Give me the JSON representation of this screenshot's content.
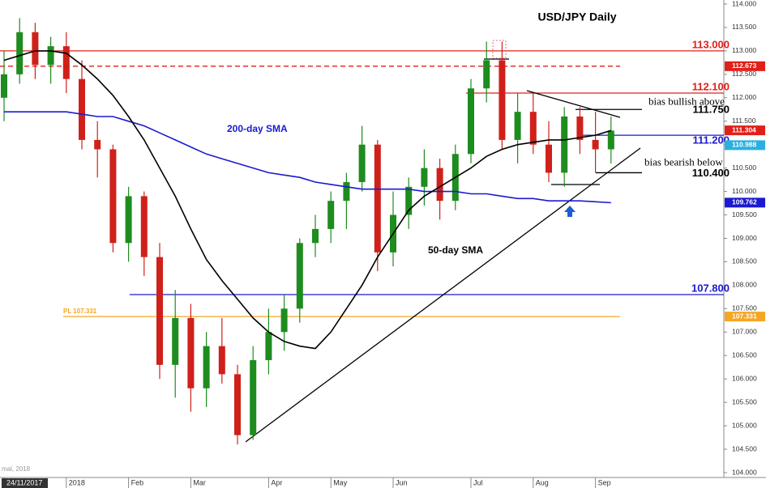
{
  "chart_data": {
    "type": "candlestick",
    "title": "USD/JPY Daily",
    "footer_note": "mal, 2018",
    "categories": [
      "24/11/2017",
      null,
      null,
      null,
      "2018",
      null,
      null,
      null,
      "Feb",
      null,
      null,
      null,
      "Mar",
      null,
      null,
      null,
      null,
      "Apr",
      null,
      null,
      null,
      "May",
      null,
      null,
      null,
      "Jun",
      null,
      null,
      null,
      null,
      "Jul",
      null,
      null,
      null,
      "Aug",
      null,
      null,
      null,
      "Sep",
      null
    ],
    "open": [
      112.0,
      112.5,
      113.4,
      112.7,
      113.1,
      112.4,
      111.1,
      110.9,
      108.9,
      109.9,
      108.6,
      106.3,
      107.3,
      105.8,
      106.7,
      106.1,
      104.8,
      106.4,
      107.0,
      107.5,
      108.9,
      109.2,
      109.8,
      110.2,
      111.0,
      108.7,
      109.5,
      110.1,
      110.5,
      109.8,
      110.8,
      112.2,
      112.8,
      111.1,
      111.7,
      111.0,
      110.4,
      111.6,
      111.1,
      110.9
    ],
    "high": [
      113.0,
      113.7,
      113.6,
      113.3,
      113.4,
      112.8,
      111.5,
      111.0,
      110.1,
      110.0,
      108.9,
      107.9,
      107.6,
      107.0,
      107.3,
      106.3,
      106.7,
      107.5,
      107.8,
      109.0,
      109.5,
      110.0,
      110.4,
      111.4,
      111.1,
      110.0,
      110.3,
      110.9,
      110.7,
      111.0,
      112.4,
      113.2,
      113.2,
      112.1,
      112.1,
      111.5,
      111.8,
      111.8,
      111.7,
      111.6
    ],
    "low": [
      111.5,
      112.3,
      112.4,
      112.3,
      112.1,
      110.9,
      110.3,
      108.7,
      108.5,
      108.2,
      106.0,
      105.6,
      105.3,
      105.4,
      105.9,
      104.6,
      104.7,
      106.1,
      106.6,
      107.2,
      108.6,
      108.9,
      109.2,
      110.0,
      108.3,
      108.4,
      109.2,
      109.7,
      109.4,
      109.6,
      110.6,
      111.9,
      110.9,
      110.6,
      110.8,
      110.2,
      110.1,
      110.8,
      110.4,
      110.6
    ],
    "close": [
      112.5,
      113.4,
      112.7,
      113.1,
      112.4,
      111.1,
      110.9,
      108.9,
      109.9,
      108.6,
      106.3,
      107.3,
      105.8,
      106.7,
      106.1,
      104.8,
      106.4,
      107.0,
      107.5,
      108.9,
      109.2,
      109.8,
      110.2,
      111.0,
      108.7,
      109.5,
      110.1,
      110.5,
      109.8,
      110.8,
      112.2,
      112.8,
      111.1,
      111.7,
      111.0,
      110.4,
      111.6,
      111.1,
      110.9,
      111.3
    ],
    "up_color": "#1e8c1e",
    "down_color": "#d0201a",
    "overlays": [
      {
        "name": "200-day SMA",
        "color": "#1a1ad0",
        "values": [
          111.7,
          111.7,
          111.7,
          111.7,
          111.7,
          111.65,
          111.6,
          111.6,
          111.5,
          111.4,
          111.25,
          111.1,
          110.95,
          110.8,
          110.7,
          110.6,
          110.5,
          110.4,
          110.35,
          110.3,
          110.2,
          110.15,
          110.1,
          110.05,
          110.05,
          110.05,
          110.05,
          110.0,
          110.0,
          110.0,
          109.95,
          109.95,
          109.9,
          109.85,
          109.85,
          109.8,
          109.8,
          109.8,
          109.78,
          109.76
        ]
      },
      {
        "name": "50-day SMA",
        "color": "#000000",
        "values": [
          112.8,
          112.9,
          113.0,
          113.0,
          112.95,
          112.7,
          112.4,
          112.05,
          111.6,
          111.1,
          110.5,
          109.9,
          109.2,
          108.55,
          108.1,
          107.7,
          107.3,
          107.0,
          106.8,
          106.7,
          106.65,
          107.0,
          107.5,
          108.0,
          108.6,
          109.1,
          109.6,
          109.9,
          110.1,
          110.3,
          110.5,
          110.75,
          110.9,
          111.0,
          111.05,
          111.1,
          111.1,
          111.15,
          111.2,
          111.3
        ]
      }
    ],
    "levels": [
      {
        "value": 113.0,
        "label": "113.000",
        "color": "#e0201a",
        "dashed": false
      },
      {
        "value": 112.673,
        "color": "#e0201a",
        "dashed": true
      },
      {
        "value": 112.1,
        "label": "112.100",
        "color": "#e0201a",
        "dashed": false
      },
      {
        "value": 111.2,
        "label": "111.200",
        "color": "#1a1ad0",
        "dashed": false
      },
      {
        "value": 107.8,
        "label": "107.800",
        "color": "#1a1ad0",
        "dashed": false
      },
      {
        "value": 107.331,
        "label": "PL 107.331",
        "color": "#f5a623",
        "dashed": false
      }
    ],
    "bias_levels": [
      {
        "text": "bias bullish above",
        "value": 111.75,
        "label": "111.750"
      },
      {
        "text": "bias bearish below",
        "value": 110.4,
        "label": "110.400"
      }
    ],
    "price_tags": [
      {
        "value": 112.673,
        "label": "112.673",
        "color": "#e0201a"
      },
      {
        "value": 111.304,
        "label": "111.304",
        "color": "#e0201a"
      },
      {
        "value": 110.988,
        "label": "110.988",
        "color": "#2ab0e0"
      },
      {
        "value": 109.762,
        "label": "109.762",
        "color": "#1a1ad0"
      },
      {
        "value": 107.331,
        "label": "107.331",
        "color": "#f5a623"
      }
    ],
    "ylim": [
      104,
      114
    ],
    "yticks": [
      {
        "value": 104,
        "label": "104.000"
      },
      {
        "value": 104.5,
        "label": "104.500"
      },
      {
        "value": 105,
        "label": "105.000"
      },
      {
        "value": 105.5,
        "label": "105.500"
      },
      {
        "value": 106,
        "label": "106.000"
      },
      {
        "value": 106.5,
        "label": "106.500"
      },
      {
        "value": 107,
        "label": "107.000"
      },
      {
        "value": 107.5,
        "label": "107.500"
      },
      {
        "value": 108,
        "label": "108.000"
      },
      {
        "value": 108.5,
        "label": "108.500"
      },
      {
        "value": 109,
        "label": "109.000"
      },
      {
        "value": 109.5,
        "label": "109.500"
      },
      {
        "value": 110,
        "label": "110.000"
      },
      {
        "value": 110.5,
        "label": "110.500"
      },
      {
        "value": 111,
        "label": "111.000"
      },
      {
        "value": 111.5,
        "label": "111.500"
      },
      {
        "value": 112,
        "label": "112.000"
      },
      {
        "value": 112.5,
        "label": "112.500"
      },
      {
        "value": 113,
        "label": "113.000"
      },
      {
        "value": 113.5,
        "label": "113.500"
      },
      {
        "value": 114,
        "label": "114.000"
      }
    ]
  }
}
